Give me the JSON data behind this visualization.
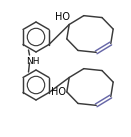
{
  "background_color": "#ffffff",
  "line_color": "#3a3a3a",
  "double_bond_color": "#6868a8",
  "text_color": "#000000",
  "nh_text": "NH",
  "ho_text_top": "HO",
  "ho_text_bottom": "HO",
  "figsize": [
    1.31,
    1.37
  ],
  "dpi": 100,
  "lw": 1.05
}
